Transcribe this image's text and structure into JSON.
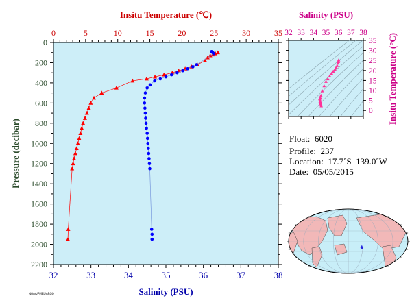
{
  "chart_data": [
    {
      "type": "scatter",
      "top_axis_label": "Insitu Temperature (℃)",
      "bottom_axis_label": "Salinity (PSU)",
      "y_axis_label": "Pressure (decibar)",
      "temperature_axis": {
        "range": [
          0,
          35
        ],
        "ticks": [
          "0",
          "5",
          "10",
          "15",
          "20",
          "25",
          "30",
          "35"
        ]
      },
      "salinity_axis": {
        "range": [
          32,
          38
        ],
        "ticks": [
          "32",
          "33",
          "34",
          "35",
          "36",
          "37",
          "38"
        ]
      },
      "pressure_axis": {
        "range": [
          0,
          2200
        ],
        "inverted": true,
        "ticks": [
          "0",
          "200",
          "400",
          "600",
          "800",
          "1000",
          "1200",
          "1400",
          "1600",
          "1800",
          "2000",
          "2200"
        ]
      },
      "colors": {
        "background": "#cdeef8",
        "temperature": "#ff0000",
        "salinity": "#0000ff",
        "top_axis": "#cc0000",
        "left_axis": "#2a4a2a",
        "bottom_axis": "#0000aa"
      },
      "series": [
        {
          "variable": "temperature",
          "marker": "triangle",
          "points": [
            {
              "p": 100,
              "t": 25.6
            },
            {
              "p": 110,
              "t": 25.2
            },
            {
              "p": 120,
              "t": 24.8
            },
            {
              "p": 130,
              "t": 24.4
            },
            {
              "p": 150,
              "t": 24.0
            },
            {
              "p": 180,
              "t": 23.6
            },
            {
              "p": 220,
              "t": 22.4
            },
            {
              "p": 240,
              "t": 21.5
            },
            {
              "p": 260,
              "t": 20.5
            },
            {
              "p": 280,
              "t": 19.5
            },
            {
              "p": 300,
              "t": 18.5
            },
            {
              "p": 320,
              "t": 17.2
            },
            {
              "p": 340,
              "t": 15.8
            },
            {
              "p": 360,
              "t": 14.5
            },
            {
              "p": 380,
              "t": 12.3
            },
            {
              "p": 450,
              "t": 9.8
            },
            {
              "p": 500,
              "t": 7.5
            },
            {
              "p": 550,
              "t": 6.3
            },
            {
              "p": 600,
              "t": 5.8
            },
            {
              "p": 650,
              "t": 5.5
            },
            {
              "p": 700,
              "t": 5.2
            },
            {
              "p": 750,
              "t": 4.9
            },
            {
              "p": 800,
              "t": 4.6
            },
            {
              "p": 850,
              "t": 4.4
            },
            {
              "p": 900,
              "t": 4.2
            },
            {
              "p": 950,
              "t": 4.0
            },
            {
              "p": 1000,
              "t": 3.8
            },
            {
              "p": 1050,
              "t": 3.6
            },
            {
              "p": 1100,
              "t": 3.4
            },
            {
              "p": 1150,
              "t": 3.2
            },
            {
              "p": 1200,
              "t": 3.05
            },
            {
              "p": 1250,
              "t": 2.9
            },
            {
              "p": 1850,
              "t": 2.3
            },
            {
              "p": 1950,
              "t": 2.25
            }
          ]
        },
        {
          "variable": "salinity",
          "marker": "circle",
          "points": [
            {
              "p": 90,
              "s": 36.22
            },
            {
              "p": 100,
              "s": 36.25
            },
            {
              "p": 110,
              "s": 36.28
            },
            {
              "p": 220,
              "s": 35.82
            },
            {
              "p": 240,
              "s": 35.72
            },
            {
              "p": 260,
              "s": 35.58
            },
            {
              "p": 280,
              "s": 35.45
            },
            {
              "p": 300,
              "s": 35.3
            },
            {
              "p": 320,
              "s": 35.15
            },
            {
              "p": 340,
              "s": 35.0
            },
            {
              "p": 360,
              "s": 34.85
            },
            {
              "p": 380,
              "s": 34.7
            },
            {
              "p": 420,
              "s": 34.58
            },
            {
              "p": 450,
              "s": 34.5
            },
            {
              "p": 500,
              "s": 34.45
            },
            {
              "p": 550,
              "s": 34.43
            },
            {
              "p": 600,
              "s": 34.43
            },
            {
              "p": 650,
              "s": 34.44
            },
            {
              "p": 700,
              "s": 34.45
            },
            {
              "p": 750,
              "s": 34.46
            },
            {
              "p": 800,
              "s": 34.47
            },
            {
              "p": 850,
              "s": 34.48
            },
            {
              "p": 900,
              "s": 34.5
            },
            {
              "p": 950,
              "s": 34.51
            },
            {
              "p": 1000,
              "s": 34.52
            },
            {
              "p": 1050,
              "s": 34.53
            },
            {
              "p": 1100,
              "s": 34.54
            },
            {
              "p": 1150,
              "s": 34.55
            },
            {
              "p": 1200,
              "s": 34.56
            },
            {
              "p": 1250,
              "s": 34.57
            },
            {
              "p": 1850,
              "s": 34.62
            },
            {
              "p": 1900,
              "s": 34.63
            },
            {
              "p": 1950,
              "s": 34.63
            }
          ]
        }
      ]
    },
    {
      "type": "scatter",
      "title": "Salinity (PSU)",
      "y_axis_label": "Insitu Temperature (°C)",
      "x_range": [
        32,
        38
      ],
      "y_range": [
        -3,
        35
      ],
      "x_ticks": [
        "32",
        "33",
        "34",
        "35",
        "36",
        "37",
        "38"
      ],
      "y_ticks": [
        "0",
        "5",
        "10",
        "15",
        "20",
        "25",
        "30",
        "35"
      ],
      "color": "#cc0088",
      "points": [
        {
          "s": 34.62,
          "t": 2.3
        },
        {
          "s": 34.6,
          "t": 2.9
        },
        {
          "s": 34.58,
          "t": 3.4
        },
        {
          "s": 34.56,
          "t": 3.8
        },
        {
          "s": 34.55,
          "t": 4.2
        },
        {
          "s": 34.53,
          "t": 4.6
        },
        {
          "s": 34.52,
          "t": 5.2
        },
        {
          "s": 34.5,
          "t": 5.8
        },
        {
          "s": 34.55,
          "t": 6.3
        },
        {
          "s": 34.6,
          "t": 7.5
        },
        {
          "s": 34.7,
          "t": 9.8
        },
        {
          "s": 34.85,
          "t": 12.3
        },
        {
          "s": 35.0,
          "t": 14.5
        },
        {
          "s": 35.15,
          "t": 15.8
        },
        {
          "s": 35.3,
          "t": 17.2
        },
        {
          "s": 35.45,
          "t": 18.5
        },
        {
          "s": 35.58,
          "t": 19.5
        },
        {
          "s": 35.72,
          "t": 20.5
        },
        {
          "s": 35.82,
          "t": 21.5
        },
        {
          "s": 35.9,
          "t": 22.4
        },
        {
          "s": 35.95,
          "t": 23.6
        },
        {
          "s": 36.0,
          "t": 24.4
        },
        {
          "s": 36.02,
          "t": 25.2
        }
      ]
    }
  ],
  "info": {
    "float": "Float:  6020",
    "profile": "Profile:  237",
    "location": "Location:  17.7˚S  139.0˚W",
    "date": "Date:  05/05/2015"
  },
  "footer_text": "NOAA/PMEL/ARGO",
  "map": {
    "marker_lon": -139.0,
    "marker_lat": -17.7,
    "marker_color": "#2222dd",
    "ocean_color": "#c8eef8",
    "land_color": "#f2b8b8"
  }
}
